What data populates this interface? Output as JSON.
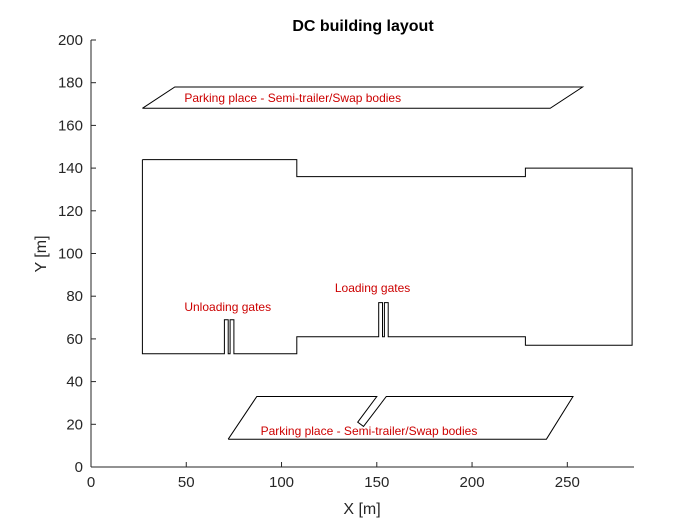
{
  "chart_data": {
    "type": "line",
    "title": "DC building layout",
    "xlabel": "X [m]",
    "ylabel": "Y [m]",
    "xlim": [
      0,
      285
    ],
    "ylim": [
      0,
      200
    ],
    "xticks": [
      0,
      50,
      100,
      150,
      200,
      250
    ],
    "yticks": [
      0,
      20,
      40,
      60,
      80,
      100,
      120,
      140,
      160,
      180,
      200
    ],
    "grid": false,
    "line_color": "#000000",
    "annotation_color": "#cc0000",
    "series": [
      {
        "points": [
          [
            27,
            144
          ],
          [
            108,
            144
          ],
          [
            108,
            136
          ],
          [
            228,
            136
          ],
          [
            228,
            140
          ],
          [
            284,
            140
          ],
          [
            284,
            57
          ],
          [
            228,
            57
          ],
          [
            228,
            61
          ],
          [
            156,
            61
          ],
          [
            156,
            77
          ],
          [
            154,
            77
          ],
          [
            154,
            61
          ],
          [
            153,
            61
          ],
          [
            153,
            77
          ],
          [
            151,
            77
          ],
          [
            151,
            61
          ],
          [
            108,
            61
          ],
          [
            108,
            53
          ],
          [
            75,
            53
          ],
          [
            75,
            69
          ],
          [
            73,
            69
          ],
          [
            73,
            53
          ],
          [
            72,
            53
          ],
          [
            72,
            69
          ],
          [
            70,
            69
          ],
          [
            70,
            53
          ],
          [
            27,
            53
          ],
          [
            27,
            144
          ]
        ]
      },
      {
        "points": [
          [
            27,
            168
          ],
          [
            44,
            178
          ],
          [
            258,
            178
          ],
          [
            241,
            168
          ],
          [
            27,
            168
          ]
        ]
      },
      {
        "points": [
          [
            72,
            13
          ],
          [
            87,
            33
          ],
          [
            150,
            33
          ],
          [
            140,
            21
          ],
          [
            143,
            19
          ],
          [
            155,
            33
          ],
          [
            253,
            33
          ],
          [
            239,
            13
          ],
          [
            72,
            13
          ]
        ]
      }
    ],
    "annotations": [
      {
        "text": "Parking place - Semi-trailer/Swap bodies",
        "x": 49,
        "y": 171
      },
      {
        "text": "Unloading gates",
        "x": 49,
        "y": 73
      },
      {
        "text": "Loading gates",
        "x": 128,
        "y": 82
      },
      {
        "text": "Parking place - Semi-trailer/Swap bodies",
        "x": 89,
        "y": 15
      }
    ]
  }
}
